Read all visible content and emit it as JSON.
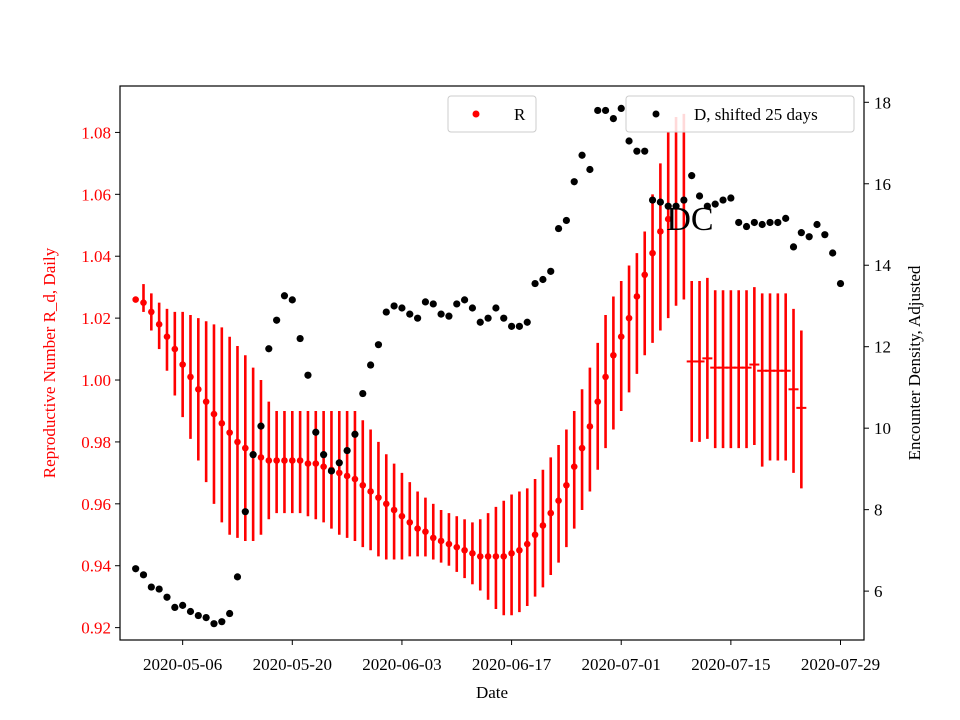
{
  "chart_data": {
    "type": "scatter",
    "title": "DC",
    "xlabel": "Date",
    "ylabel_left": "Reproductive Number R_d, Daily",
    "ylabel_right": "Encounter Density, Adjusted",
    "x_tick_labels": [
      "2020-05-06",
      "2020-05-20",
      "2020-06-03",
      "2020-06-17",
      "2020-07-01",
      "2020-07-15",
      "2020-07-29"
    ],
    "y_left_ticks": [
      "0.92",
      "0.94",
      "0.96",
      "0.98",
      "1.00",
      "1.02",
      "1.04",
      "1.06",
      "1.08"
    ],
    "y_right_ticks": [
      "6",
      "8",
      "10",
      "12",
      "14",
      "16",
      "18"
    ],
    "xlim": [
      "2020-04-28",
      "2020-08-01"
    ],
    "ylim_left": [
      0.916,
      1.095
    ],
    "ylim_right": [
      4.8,
      18.4
    ],
    "grid": false,
    "legends": [
      {
        "label": "R",
        "color": "#ff0000",
        "position": "upper center"
      },
      {
        "label": "D, shifted 25 days",
        "color": "#000000",
        "position": "upper right"
      }
    ],
    "start_date": "2020-04-30",
    "series": [
      {
        "name": "R",
        "axis": "left",
        "color": "#ff0000",
        "values": [
          1.026,
          1.025,
          1.022,
          1.018,
          1.014,
          1.01,
          1.005,
          1.001,
          0.997,
          0.993,
          0.989,
          0.986,
          0.983,
          0.98,
          0.978,
          0.976,
          0.975,
          0.974,
          0.974,
          0.974,
          0.974,
          0.974,
          0.973,
          0.973,
          0.972,
          0.971,
          0.97,
          0.969,
          0.968,
          0.966,
          0.964,
          0.962,
          0.96,
          0.958,
          0.956,
          0.954,
          0.952,
          0.951,
          0.949,
          0.948,
          0.947,
          0.946,
          0.945,
          0.944,
          0.943,
          0.943,
          0.943,
          0.943,
          0.944,
          0.945,
          0.947,
          0.95,
          0.953,
          0.957,
          0.961,
          0.966,
          0.972,
          0.978,
          0.985,
          0.993,
          1.001,
          1.008,
          1.014,
          1.02,
          1.027,
          1.034,
          1.041,
          1.048,
          1.052,
          1.056,
          1.058,
          1.006,
          1.006,
          1.007,
          1.004,
          1.004,
          1.004,
          1.004,
          1.004,
          1.005,
          1.003,
          1.003,
          1.003,
          1.003,
          0.997,
          0.991
        ],
        "err_lo": [
          1.026,
          1.022,
          1.016,
          1.01,
          1.003,
          0.995,
          0.988,
          0.981,
          0.974,
          0.967,
          0.96,
          0.954,
          0.95,
          0.949,
          0.948,
          0.948,
          0.95,
          0.955,
          0.957,
          0.957,
          0.957,
          0.957,
          0.956,
          0.955,
          0.954,
          0.952,
          0.95,
          0.949,
          0.948,
          0.946,
          0.945,
          0.943,
          0.942,
          0.942,
          0.942,
          0.943,
          0.943,
          0.943,
          0.942,
          0.941,
          0.94,
          0.938,
          0.936,
          0.934,
          0.932,
          0.929,
          0.926,
          0.924,
          0.924,
          0.925,
          0.927,
          0.93,
          0.933,
          0.937,
          0.941,
          0.946,
          0.952,
          0.958,
          0.964,
          0.971,
          0.978,
          0.984,
          0.99,
          0.996,
          1.002,
          1.008,
          1.012,
          1.016,
          1.02,
          1.024,
          1.026,
          0.98,
          0.98,
          0.981,
          0.978,
          0.978,
          0.978,
          0.978,
          0.978,
          0.979,
          0.972,
          0.974,
          0.974,
          0.974,
          0.97,
          0.965
        ],
        "err_hi": [
          1.026,
          1.031,
          1.028,
          1.025,
          1.023,
          1.022,
          1.022,
          1.021,
          1.02,
          1.019,
          1.018,
          1.017,
          1.014,
          1.011,
          1.008,
          1.004,
          1.0,
          0.993,
          0.99,
          0.99,
          0.99,
          0.99,
          0.99,
          0.99,
          0.99,
          0.99,
          0.99,
          0.99,
          0.99,
          0.987,
          0.984,
          0.98,
          0.976,
          0.973,
          0.97,
          0.967,
          0.964,
          0.962,
          0.96,
          0.958,
          0.957,
          0.956,
          0.955,
          0.954,
          0.955,
          0.957,
          0.959,
          0.961,
          0.963,
          0.964,
          0.965,
          0.968,
          0.971,
          0.975,
          0.979,
          0.984,
          0.99,
          0.997,
          1.004,
          1.012,
          1.021,
          1.027,
          1.032,
          1.037,
          1.041,
          1.048,
          1.06,
          1.07,
          1.08,
          1.085,
          1.086,
          1.032,
          1.032,
          1.033,
          1.029,
          1.029,
          1.029,
          1.029,
          1.029,
          1.03,
          1.028,
          1.028,
          1.028,
          1.028,
          1.023,
          1.016
        ],
        "display_marker": [
          1,
          1,
          1,
          1,
          1,
          1,
          1,
          1,
          1,
          1,
          1,
          1,
          1,
          1,
          1,
          1,
          1,
          1,
          1,
          1,
          1,
          1,
          1,
          1,
          1,
          1,
          1,
          1,
          1,
          1,
          1,
          1,
          1,
          1,
          1,
          1,
          1,
          1,
          1,
          1,
          1,
          1,
          1,
          1,
          1,
          1,
          1,
          1,
          1,
          1,
          1,
          1,
          1,
          1,
          1,
          1,
          1,
          1,
          1,
          1,
          1,
          1,
          1,
          1,
          1,
          1,
          1,
          1,
          1,
          1,
          1,
          0,
          0,
          0,
          0,
          0,
          0,
          0,
          0,
          0,
          0,
          0,
          0,
          0,
          0,
          0
        ]
      },
      {
        "name": "D, shifted 25 days",
        "axis": "right",
        "color": "#000000",
        "values": [
          6.55,
          6.4,
          6.1,
          6.05,
          5.85,
          5.6,
          5.65,
          5.5,
          5.4,
          5.35,
          5.2,
          5.25,
          5.45,
          6.35,
          7.95,
          9.35,
          10.05,
          11.95,
          12.65,
          13.25,
          13.15,
          12.2,
          11.3,
          9.9,
          9.35,
          8.95,
          9.15,
          9.45,
          9.85,
          10.85,
          11.55,
          12.05,
          12.85,
          13.0,
          12.95,
          12.8,
          12.7,
          13.1,
          13.05,
          12.8,
          12.75,
          13.05,
          13.15,
          12.95,
          12.6,
          12.7,
          12.95,
          12.7,
          12.5,
          12.5,
          12.6,
          13.55,
          13.65,
          13.85,
          14.9,
          15.1,
          16.05,
          16.7,
          16.35,
          17.8,
          17.8,
          17.6,
          17.85,
          17.05,
          16.8,
          16.8,
          15.6,
          15.55,
          15.45,
          15.45,
          15.6,
          16.2,
          15.7,
          15.45,
          15.5,
          15.6,
          15.65,
          15.05,
          14.95,
          15.05,
          15.0,
          15.05,
          15.05,
          15.15,
          14.45,
          14.8,
          14.7,
          15.0,
          14.75,
          14.3,
          13.55
        ]
      }
    ]
  }
}
